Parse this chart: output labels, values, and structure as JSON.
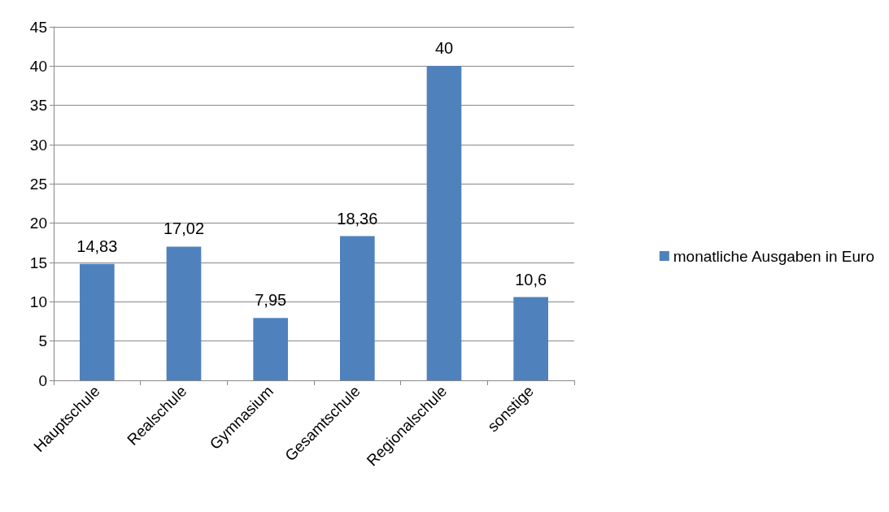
{
  "chart_data": {
    "type": "bar",
    "categories": [
      "Hauptschule",
      "Realschule",
      "Gymnasium",
      "Gesamtschule",
      "Regionalschule",
      "sonstige"
    ],
    "series": [
      {
        "name": "monatliche Ausgaben in Euro",
        "color": "#4f81bd",
        "values": [
          14.83,
          17.02,
          7.95,
          18.36,
          40,
          10.6
        ],
        "value_labels": [
          "14,83",
          "17,02",
          "7,95",
          "18,36",
          "40",
          "10,6"
        ]
      }
    ],
    "ylim": [
      0,
      45
    ],
    "yticks": [
      0,
      5,
      10,
      15,
      20,
      25,
      30,
      35,
      40,
      45
    ],
    "grid": "y",
    "legend": "right"
  }
}
